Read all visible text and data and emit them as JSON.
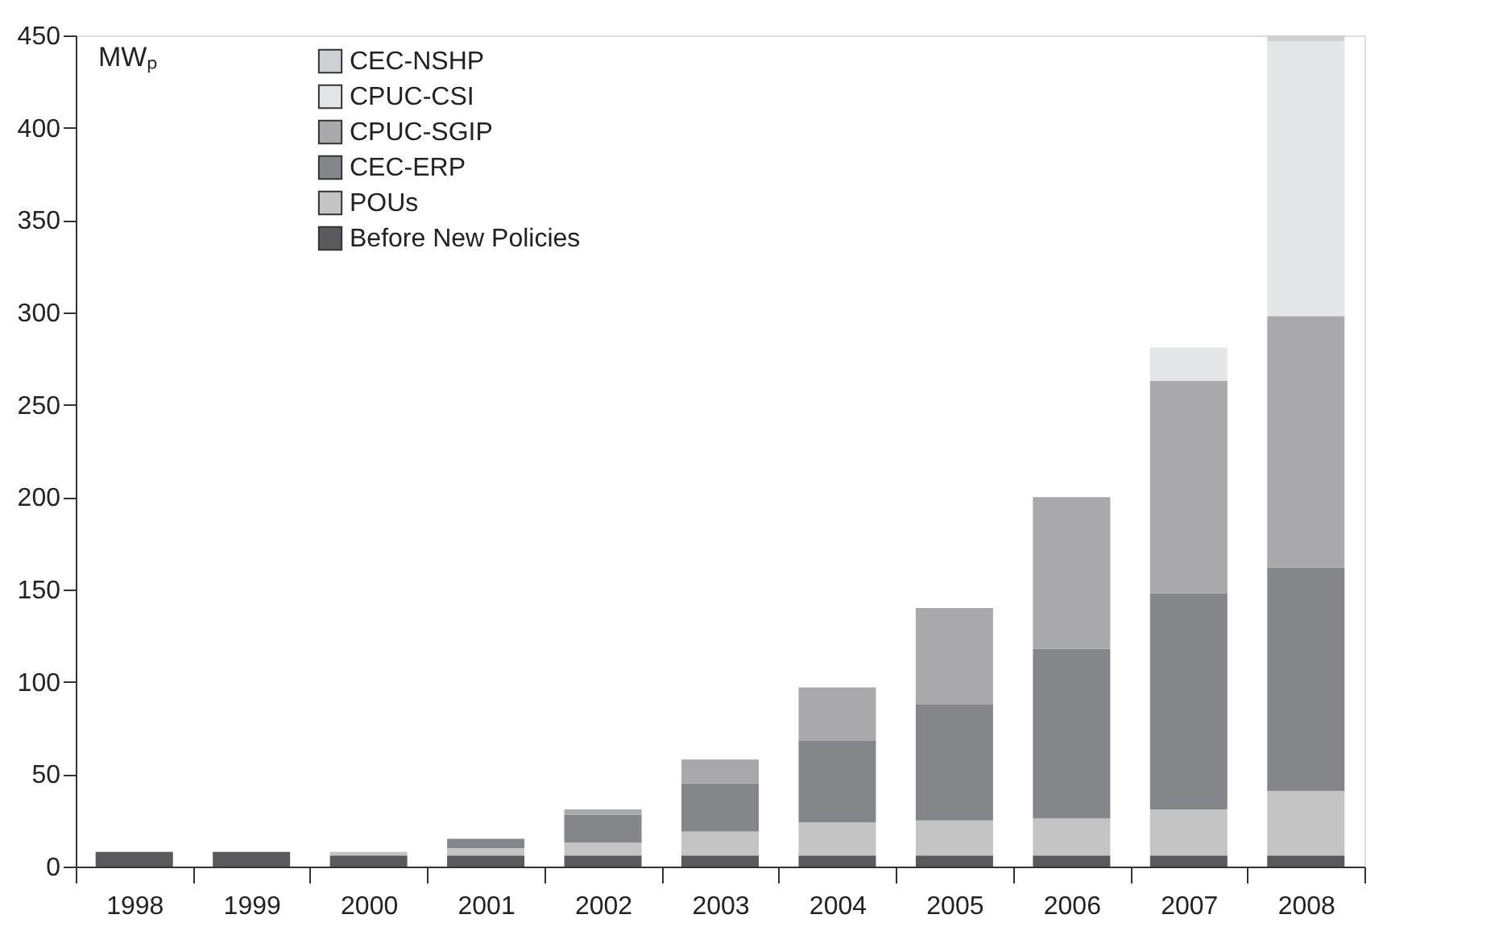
{
  "chart_data": {
    "type": "bar",
    "stacked": true,
    "ylabel": "MWₚ",
    "categories": [
      "1998",
      "1999",
      "2000",
      "2001",
      "2002",
      "2003",
      "2004",
      "2005",
      "2006",
      "2007",
      "2008"
    ],
    "series": [
      {
        "name": "Before New Policies",
        "color": "#5a5a5c",
        "values": [
          8,
          8,
          6,
          6,
          6,
          6,
          6,
          6,
          6,
          6,
          6
        ]
      },
      {
        "name": "POUs",
        "color": "#c4c4c4",
        "values": [
          0,
          0,
          2,
          4,
          7,
          13,
          18,
          19,
          20,
          25,
          35
        ]
      },
      {
        "name": "CEC-ERP",
        "color": "#858689",
        "values": [
          0,
          0,
          0,
          5,
          15,
          26,
          44,
          63,
          92,
          117,
          121
        ]
      },
      {
        "name": "CPUC-SGIP",
        "color": "#a9a9ab",
        "values": [
          0,
          0,
          0,
          0,
          3,
          13,
          29,
          52,
          82,
          115,
          136
        ]
      },
      {
        "name": "CPUC-CSI",
        "color": "#e4e5e7",
        "values": [
          0,
          0,
          0,
          0,
          0,
          0,
          0,
          0,
          0,
          18,
          149
        ]
      },
      {
        "name": "CEC-NSHP",
        "color": "#cfd0d2",
        "values": [
          0,
          0,
          0,
          0,
          0,
          0,
          0,
          0,
          0,
          0,
          3
        ]
      }
    ],
    "ylim": [
      0,
      450
    ],
    "yticks": [
      0,
      50,
      100,
      150,
      200,
      250,
      300,
      350,
      400,
      450
    ],
    "grid": false,
    "legend": "top left"
  }
}
